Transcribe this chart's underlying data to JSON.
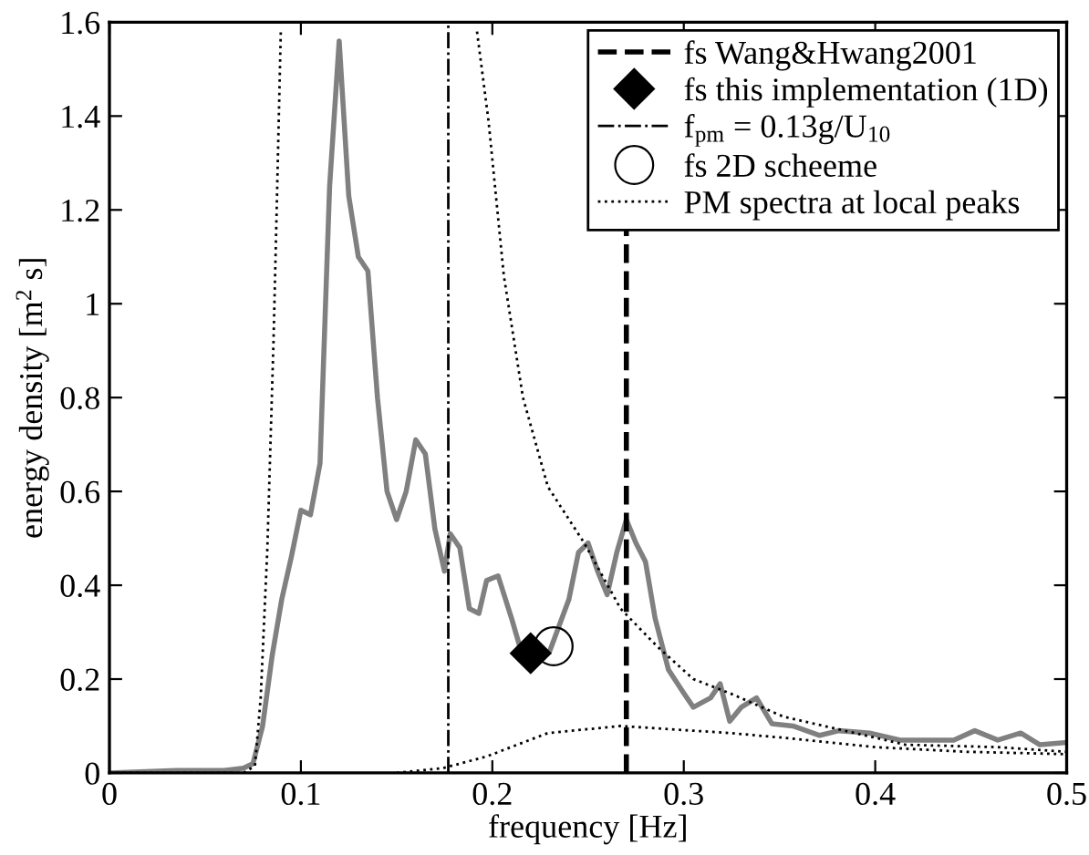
{
  "chart_data": {
    "type": "line",
    "xlabel": "frequency [Hz]",
    "ylabel": "energy density [m$^{2}$ s]",
    "xlim": [
      0,
      0.5
    ],
    "ylim": [
      0,
      1.6
    ],
    "xticks": [
      0,
      0.1,
      0.2,
      0.3,
      0.4,
      0.5
    ],
    "yticks": [
      0,
      0.2,
      0.4,
      0.6,
      0.8,
      1,
      1.2,
      1.4,
      1.6
    ],
    "grid": false,
    "legend": "top right",
    "series": [
      {
        "color": "#808080",
        "line_style": "solid",
        "marker": "none",
        "x": [
          0,
          0.035,
          0.06,
          0.07,
          0.075,
          0.08,
          0.085,
          0.09,
          0.095,
          0.1,
          0.105,
          0.11,
          0.115,
          0.12,
          0.125,
          0.13,
          0.135,
          0.14,
          0.145,
          0.15,
          0.155,
          0.16,
          0.165,
          0.17,
          0.175,
          0.178,
          0.183,
          0.188,
          0.193,
          0.197,
          0.203,
          0.21,
          0.215,
          0.22,
          0.23,
          0.24,
          0.245,
          0.25,
          0.255,
          0.26,
          0.265,
          0.27,
          0.275,
          0.28,
          0.285,
          0.292,
          0.3,
          0.305,
          0.314,
          0.319,
          0.324,
          0.33,
          0.338,
          0.346,
          0.357,
          0.371,
          0.381,
          0.397,
          0.413,
          0.441,
          0.452,
          0.464,
          0.476,
          0.486,
          0.5
        ],
        "values": [
          0,
          0.005,
          0.005,
          0.01,
          0.02,
          0.1,
          0.25,
          0.37,
          0.46,
          0.56,
          0.55,
          0.66,
          1.25,
          1.56,
          1.23,
          1.1,
          1.07,
          0.8,
          0.6,
          0.54,
          0.6,
          0.71,
          0.68,
          0.52,
          0.43,
          0.51,
          0.48,
          0.35,
          0.34,
          0.41,
          0.42,
          0.33,
          0.26,
          null,
          0.26,
          0.37,
          0.47,
          0.49,
          0.43,
          0.38,
          0.47,
          0.54,
          0.49,
          0.45,
          0.33,
          0.22,
          0.17,
          0.14,
          0.16,
          0.19,
          0.11,
          0.14,
          0.16,
          0.105,
          0.1,
          0.08,
          0.09,
          0.085,
          0.07,
          0.07,
          0.09,
          0.07,
          0.085,
          0.06,
          0.065
        ]
      },
      {
        "type": "line",
        "name": "fs Wang&Hwang2001",
        "color": "#000000",
        "line_style": "dashed",
        "marker": "none",
        "x": [
          0.27,
          0.27
        ],
        "values": [
          0,
          1.6
        ]
      },
      {
        "type": "scatter",
        "name": "fs this implementation (1D)",
        "color": "#000000",
        "marker": "diamond",
        "x": [
          0.22
        ],
        "values": [
          0.255
        ]
      },
      {
        "type": "line",
        "name": "f$_{pm}$ = 0.13g/U$_{10}$",
        "color": "#000000",
        "line_style": "dashdot",
        "marker": "none",
        "x": [
          0.177,
          0.177
        ],
        "values": [
          0,
          1.6
        ]
      },
      {
        "type": "scatter",
        "name": "fs 2D scheeme",
        "color": "#000000",
        "marker": "circle",
        "x": [
          0.232
        ],
        "values": [
          0.27
        ]
      },
      {
        "type": "line",
        "name": "PM spectra at local peaks",
        "color": "#000000",
        "line_style": "dotted",
        "marker": "none",
        "x": [
          0,
          0.07,
          0.076,
          0.079,
          0.0825,
          0.0857,
          0.0873,
          0.0895
        ],
        "values": [
          0,
          0,
          0.015,
          0.16,
          0.48,
          0.92,
          1.19,
          1.58
        ]
      },
      {
        "type": "line",
        "color": "#000000",
        "line_style": "dotted",
        "marker": "none",
        "x": [
          0.192,
          0.198,
          0.206,
          0.216,
          0.229,
          0.248,
          0.267,
          0.286,
          0.305,
          0.324,
          0.352,
          0.384,
          0.416,
          0.464,
          0.5
        ],
        "values": [
          1.58,
          1.39,
          1.06,
          0.8,
          0.61,
          0.49,
          0.35,
          0.27,
          0.2,
          0.17,
          0.12,
          0.09,
          0.06,
          0.055,
          0.045
        ]
      },
      {
        "type": "line",
        "color": "#000000",
        "line_style": "dotted",
        "marker": "none",
        "x": [
          0.15,
          0.174,
          0.197,
          0.229,
          0.267,
          0.324,
          0.352,
          0.4,
          0.448,
          0.5
        ],
        "values": [
          0,
          0.01,
          0.035,
          0.085,
          0.1,
          0.085,
          0.075,
          0.055,
          0.045,
          0.04
        ]
      }
    ]
  }
}
